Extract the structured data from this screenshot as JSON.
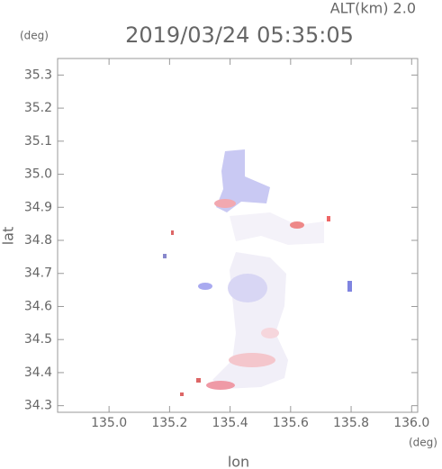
{
  "chart_data": {
    "type": "map",
    "title": "2019/03/24 05:35:05",
    "subtitle": "ALT(km) 2.0",
    "y_unit": "(deg)",
    "x_unit": "(deg)",
    "xlabel": "lon",
    "ylabel": "lat",
    "xlim": [
      134.83,
      136.02
    ],
    "ylim": [
      34.28,
      35.35
    ],
    "xticks": [
      {
        "value": 135.0,
        "label": "135.0"
      },
      135.2,
      135.4,
      135.6,
      135.8,
      {
        "value": 136.0,
        "label": "136.0"
      }
    ],
    "yticks": [
      35.3,
      35.2,
      35.1,
      {
        "value": 35.0,
        "label": "35.0"
      },
      34.9,
      34.8,
      34.7,
      34.6,
      34.5,
      34.4,
      34.3
    ]
  }
}
